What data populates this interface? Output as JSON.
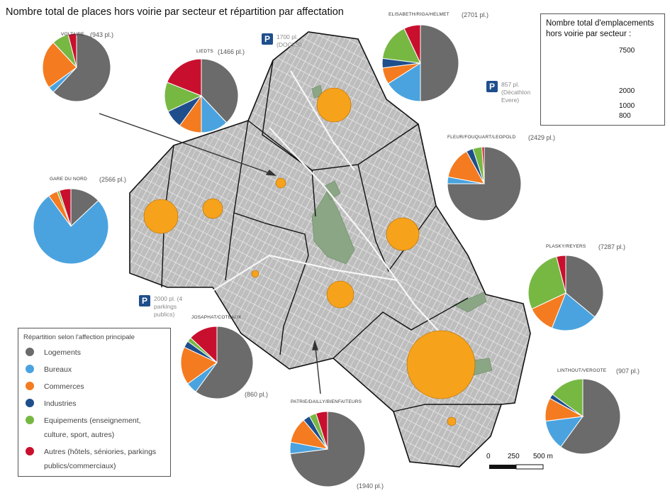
{
  "title": "Nombre total de places hors voirie par secteur et répartition par affectation",
  "categories": [
    {
      "key": "logements",
      "label": "Logements",
      "color": "#6b6b6b"
    },
    {
      "key": "bureaux",
      "label": "Bureaux",
      "color": "#4aa3df"
    },
    {
      "key": "commerces",
      "label": "Commerces",
      "color": "#f47b20"
    },
    {
      "key": "industries",
      "label": "Industries",
      "color": "#1f4e8c"
    },
    {
      "key": "equipements",
      "label": "Equipements (enseignement, culture, sport, autres)",
      "color": "#77b843"
    },
    {
      "key": "autres",
      "label": "Autres (hôtels, séniories, parkings publics/commerciaux)",
      "color": "#c8102e"
    }
  ],
  "legend": {
    "title": "Répartition selon l'affection principale"
  },
  "size_legend": {
    "title": "Nombre total d'emplacements hors voirie par secteur :",
    "circle_color": "#f7a21b",
    "values": [
      "7500",
      "2000",
      "1000",
      "800"
    ]
  },
  "scale_bar": {
    "labels": [
      "0",
      "250",
      "500 m"
    ]
  },
  "parkings": [
    {
      "icon": "P",
      "text": "1700 pl. (DOCKS)"
    },
    {
      "icon": "P",
      "text": "857 pl. (Décathlon Evere)"
    },
    {
      "icon": "P",
      "text": "2000 pl. (4 parkings publics)"
    }
  ],
  "sectors": [
    {
      "name": "VOLTAIRE",
      "count": "(943 pl.)",
      "shares": [
        0.62,
        0.03,
        0.23,
        0.0,
        0.08,
        0.04
      ]
    },
    {
      "name": "LIEDTS",
      "count": "(1466 pl.)",
      "shares": [
        0.38,
        0.12,
        0.1,
        0.08,
        0.13,
        0.19
      ]
    },
    {
      "name": "ELISABETH/RIGA/HELMET",
      "count": "(2701 pl.)",
      "shares": [
        0.5,
        0.16,
        0.07,
        0.04,
        0.16,
        0.07
      ]
    },
    {
      "name": "FLEUR/FOUQUART/LEOPOLD",
      "count": "(2429 pl.)",
      "shares": [
        0.75,
        0.03,
        0.14,
        0.03,
        0.04,
        0.01
      ]
    },
    {
      "name": "GARE DU NORD",
      "count": "(2566 pl.)",
      "shares": [
        0.13,
        0.77,
        0.04,
        0.0,
        0.01,
        0.05
      ]
    },
    {
      "name": "PLASKY/REYERS",
      "count": "(7287 pl.)",
      "shares": [
        0.36,
        0.2,
        0.12,
        0.0,
        0.28,
        0.04
      ]
    },
    {
      "name": "JOSAPHAT/COTEAUX",
      "count": "(860 pl.)",
      "shares": [
        0.6,
        0.05,
        0.17,
        0.03,
        0.02,
        0.13
      ]
    },
    {
      "name": "PATRIE/DAILLY/BIENFAITEURS",
      "count": "(1940 pl.)",
      "shares": [
        0.73,
        0.05,
        0.11,
        0.03,
        0.03,
        0.05
      ]
    },
    {
      "name": "LINTHOUT/VERGOTE",
      "count": "(907 pl.)",
      "shares": [
        0.6,
        0.13,
        0.1,
        0.02,
        0.15,
        0.0
      ]
    }
  ]
}
